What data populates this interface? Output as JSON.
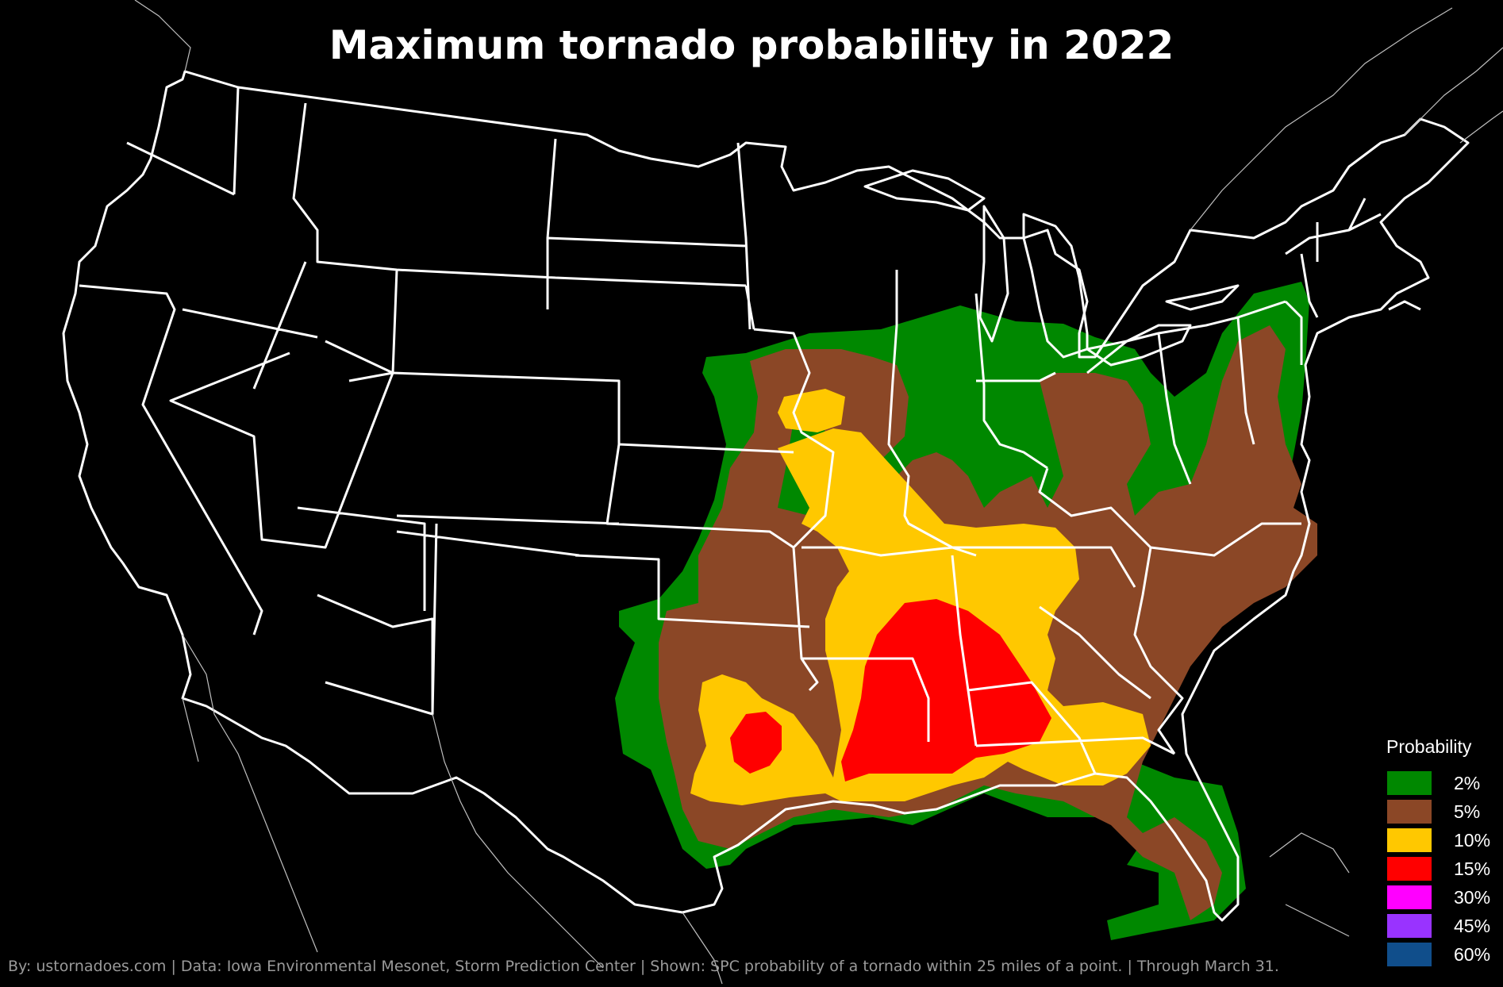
{
  "title": "Maximum tornado probability in 2022",
  "legend": {
    "title": "Probability",
    "items": [
      {
        "label": "2%",
        "color": "#008800"
      },
      {
        "label": "5%",
        "color": "#8b4726"
      },
      {
        "label": "10%",
        "color": "#ffc800"
      },
      {
        "label": "15%",
        "color": "#ff0000"
      },
      {
        "label": "30%",
        "color": "#ff00ff"
      },
      {
        "label": "45%",
        "color": "#9933ff"
      },
      {
        "label": "60%",
        "color": "#104e8b"
      }
    ]
  },
  "footer": "By: ustornadoes.com | Data: Iowa Environmental Mesonet, Storm Prediction Center | Shown: SPC probability of a tornado within 25 miles of a point. | Through March 31."
}
